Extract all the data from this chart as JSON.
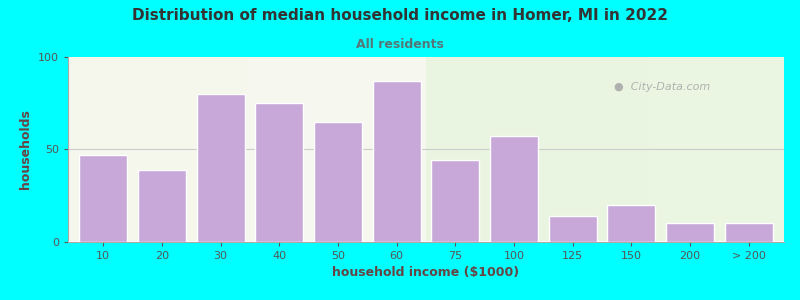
{
  "title": "Distribution of median household income in Homer, MI in 2022",
  "subtitle": "All residents",
  "xlabel": "household income ($1000)",
  "ylabel": "households",
  "bar_labels": [
    "10",
    "20",
    "30",
    "40",
    "50",
    "60",
    "75",
    "100",
    "125",
    "150",
    "200",
    "> 200"
  ],
  "bar_values": [
    47,
    39,
    80,
    75,
    65,
    87,
    44,
    57,
    14,
    20,
    10,
    10
  ],
  "bar_color": "#c8a8d8",
  "bar_edge_color": "#ffffff",
  "ylim": [
    0,
    100
  ],
  "yticks": [
    0,
    50,
    100
  ],
  "outer_bg": "#00ffff",
  "title_color": "#333333",
  "subtitle_color": "#557777",
  "axis_label_color": "#664444",
  "tick_color": "#555555",
  "watermark_text": "City-Data.com",
  "watermark_color": "#aaaaaa",
  "bg_green": "#e8f5e0",
  "bg_white": "#f8f8f0"
}
